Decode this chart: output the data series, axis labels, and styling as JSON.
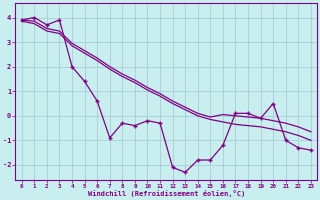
{
  "title": "",
  "xlabel": "Windchill (Refroidissement éolien,°C)",
  "ylabel": "",
  "background_color": "#c8eef0",
  "line_color": "#800080",
  "grid_color": "#a0c8d0",
  "xlim": [
    -0.5,
    23.5
  ],
  "ylim": [
    -2.6,
    4.6
  ],
  "xticks": [
    0,
    1,
    2,
    3,
    4,
    5,
    6,
    7,
    8,
    9,
    10,
    11,
    12,
    13,
    14,
    15,
    16,
    17,
    18,
    19,
    20,
    21,
    22,
    23
  ],
  "yticks": [
    -2,
    -1,
    0,
    1,
    2,
    3,
    4
  ],
  "series1_x": [
    0,
    1,
    2,
    3,
    4,
    5,
    6,
    7,
    8,
    9,
    10,
    11,
    12,
    13,
    14,
    15,
    16,
    17,
    18,
    19,
    20,
    21,
    22,
    23
  ],
  "series1_y": [
    3.9,
    4.0,
    3.7,
    3.9,
    2.0,
    1.4,
    0.6,
    -0.9,
    -0.3,
    -0.4,
    -0.2,
    -0.3,
    -2.1,
    -2.3,
    -1.8,
    -1.8,
    -1.2,
    0.1,
    0.1,
    -0.1,
    0.5,
    -1.0,
    -1.3,
    -1.4
  ],
  "series2_x": [
    0,
    1,
    2,
    3,
    4,
    5,
    6,
    7,
    8,
    9,
    10,
    11,
    12,
    13,
    14,
    15,
    16,
    17,
    18,
    19,
    20,
    21,
    22,
    23
  ],
  "series2_y": [
    3.85,
    3.75,
    3.45,
    3.35,
    2.85,
    2.55,
    2.25,
    1.9,
    1.6,
    1.35,
    1.05,
    0.8,
    0.5,
    0.25,
    0.0,
    -0.15,
    -0.25,
    -0.35,
    -0.4,
    -0.45,
    -0.55,
    -0.65,
    -0.8,
    -1.0
  ],
  "series3_x": [
    0,
    1,
    2,
    3,
    4,
    5,
    6,
    7,
    8,
    9,
    10,
    11,
    12,
    13,
    14,
    15,
    16,
    17,
    18,
    19,
    20,
    21,
    22,
    23
  ],
  "series3_y": [
    3.9,
    3.85,
    3.55,
    3.45,
    2.95,
    2.65,
    2.35,
    2.0,
    1.7,
    1.45,
    1.15,
    0.9,
    0.6,
    0.35,
    0.1,
    -0.05,
    0.05,
    0.0,
    -0.05,
    -0.1,
    -0.2,
    -0.3,
    -0.45,
    -0.65
  ]
}
